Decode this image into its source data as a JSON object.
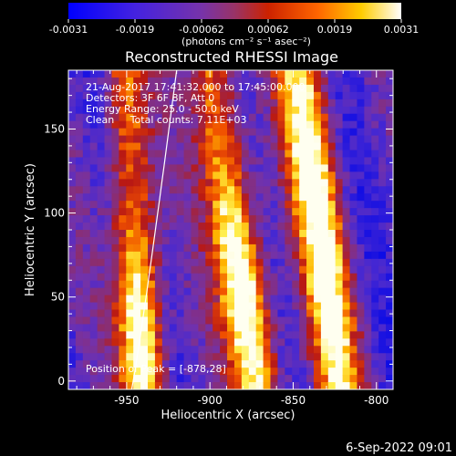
{
  "colorbar": {
    "tick_labels": [
      "-0.0031",
      "-0.0019",
      "-0.00062",
      "0.00062",
      "0.0019",
      "0.0031"
    ],
    "unit_label": "(photons cm⁻² s⁻¹ asec⁻²)",
    "range": [
      -0.0031,
      0.0031
    ]
  },
  "chart_data": {
    "type": "heatmap",
    "title": "Reconstructed RHESSI Image",
    "xlabel": "Heliocentric X (arcsec)",
    "ylabel": "Heliocentric Y (arcsec)",
    "xlim": [
      -985,
      -790
    ],
    "ylim": [
      -5,
      185
    ],
    "xticks": [
      -950,
      -900,
      -850,
      -800
    ],
    "yticks": [
      0,
      50,
      100,
      150
    ],
    "xtick_labels": [
      "-950",
      "-900",
      "-850",
      "-800"
    ],
    "ytick_labels": [
      "0",
      "50",
      "100",
      "150"
    ],
    "annotations": [
      "21-Aug-2017 17:41:32.000 to 17:45:00.000",
      "Detectors: 3F 6F 8F, Att 0",
      "Energy Range: 25.0 - 50.0 keV",
      "Clean     Total counts: 7.11E+03"
    ],
    "peak_label": "Position of Peak = [-878,28]",
    "peak": [
      -878,
      28
    ],
    "grid": false,
    "legend": "none",
    "colormap": "blue-purple-red-yellow-white",
    "limb_curve": {
      "x_at_bottom": -947,
      "x_at_top": -920
    }
  },
  "footer": {
    "timestamp": "6-Sep-2022 09:01"
  }
}
